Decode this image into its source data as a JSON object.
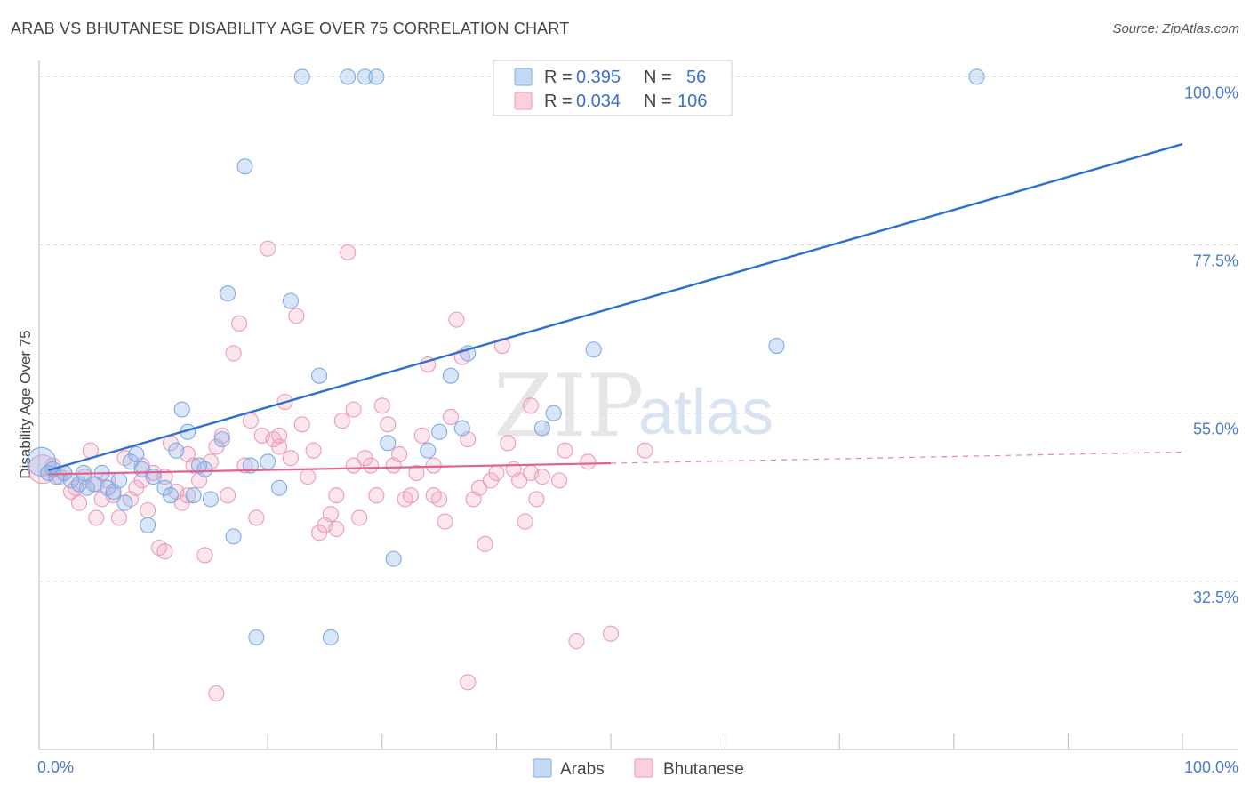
{
  "title": "ARAB VS BHUTANESE DISABILITY AGE OVER 75 CORRELATION CHART",
  "source": "Source: ZipAtlas.com",
  "watermark": {
    "zip": "ZIP",
    "atlas": "atlas"
  },
  "colors": {
    "arabs": "#8fb8ec",
    "arabs_line": "#2e6fd0",
    "bhutanese": "#f2a7c1",
    "bhutanese_line": "#e0638f",
    "grid": "#d9d9d9"
  },
  "legend": {
    "rows": [
      {
        "r_label": "R =",
        "r_value": "0.395",
        "n_label": "N =",
        "n_value": "56"
      },
      {
        "r_label": "R =",
        "r_value": "0.034",
        "n_label": "N =",
        "n_value": "106"
      }
    ]
  },
  "bottom_legend": [
    "Arabs",
    "Bhutanese"
  ],
  "chart_data": {
    "type": "scatter",
    "title": "ARAB VS BHUTANESE DISABILITY AGE OVER 75 CORRELATION CHART",
    "xlabel": "",
    "ylabel": "Disability Age Over 75",
    "xlim": [
      0,
      100
    ],
    "ylim": [
      10,
      101
    ],
    "x_tick_labels": [
      "0.0%",
      "100.0%"
    ],
    "y_ticks": [
      32.5,
      55.0,
      77.5,
      100.0
    ],
    "y_tick_labels": [
      "32.5%",
      "55.0%",
      "77.5%",
      "100.0%"
    ],
    "series": [
      {
        "name": "Arabs",
        "trend": {
          "x": [
            0,
            100
          ],
          "y": [
            47.0,
            91.0
          ],
          "solid_to": 100
        },
        "points": [
          [
            0.2,
            48.5
          ],
          [
            0.8,
            47.0
          ],
          [
            1.2,
            47.5
          ],
          [
            1.5,
            46.5
          ],
          [
            2.2,
            47.0
          ],
          [
            2.8,
            46.0
          ],
          [
            3.5,
            45.5
          ],
          [
            3.9,
            47.0
          ],
          [
            4.2,
            45.0
          ],
          [
            4.8,
            45.5
          ],
          [
            5.5,
            47.0
          ],
          [
            6.0,
            45.0
          ],
          [
            6.5,
            44.5
          ],
          [
            7.0,
            46.0
          ],
          [
            7.5,
            43.0
          ],
          [
            8.0,
            48.5
          ],
          [
            8.5,
            49.5
          ],
          [
            9.0,
            47.5
          ],
          [
            9.5,
            40.0
          ],
          [
            10.0,
            46.5
          ],
          [
            11.0,
            45.0
          ],
          [
            11.5,
            44.0
          ],
          [
            12.0,
            50.0
          ],
          [
            12.5,
            55.5
          ],
          [
            13.0,
            52.5
          ],
          [
            13.5,
            44.0
          ],
          [
            14.0,
            48.0
          ],
          [
            14.5,
            47.5
          ],
          [
            15.0,
            43.5
          ],
          [
            16.0,
            51.5
          ],
          [
            16.5,
            71.0
          ],
          [
            17.0,
            38.5
          ],
          [
            18.0,
            88.0
          ],
          [
            18.5,
            48.0
          ],
          [
            19.0,
            25.0
          ],
          [
            20.0,
            48.5
          ],
          [
            21.0,
            45.0
          ],
          [
            22.0,
            70.0
          ],
          [
            23.0,
            100.0
          ],
          [
            24.5,
            60.0
          ],
          [
            25.5,
            25.0
          ],
          [
            27.0,
            100.0
          ],
          [
            28.5,
            100.0
          ],
          [
            29.5,
            100.0
          ],
          [
            31.0,
            35.5
          ],
          [
            30.5,
            51.0
          ],
          [
            34.0,
            50.0
          ],
          [
            35.0,
            52.5
          ],
          [
            36.0,
            60.0
          ],
          [
            37.5,
            63.0
          ],
          [
            37.0,
            53.0
          ],
          [
            44.0,
            53.0
          ],
          [
            45.0,
            55.0
          ],
          [
            48.5,
            63.5
          ],
          [
            64.5,
            64.0
          ],
          [
            82.0,
            100.0
          ]
        ]
      },
      {
        "name": "Bhutanese",
        "trend": {
          "x": [
            0,
            100
          ],
          "y": [
            46.8,
            49.8
          ],
          "solid_to": 50
        },
        "points": [
          [
            0.3,
            47.5
          ],
          [
            0.8,
            47.0
          ],
          [
            1.2,
            48.0
          ],
          [
            1.8,
            46.5
          ],
          [
            2.2,
            47.0
          ],
          [
            2.8,
            44.5
          ],
          [
            3.2,
            45.0
          ],
          [
            3.5,
            43.0
          ],
          [
            4.0,
            46.5
          ],
          [
            4.5,
            50.0
          ],
          [
            5.0,
            45.5
          ],
          [
            5.5,
            43.5
          ],
          [
            6.0,
            46.0
          ],
          [
            6.5,
            44.0
          ],
          [
            7.0,
            41.0
          ],
          [
            7.5,
            49.0
          ],
          [
            8.0,
            43.5
          ],
          [
            8.5,
            45.0
          ],
          [
            9.0,
            48.0
          ],
          [
            9.5,
            42.0
          ],
          [
            10.0,
            47.0
          ],
          [
            10.5,
            37.0
          ],
          [
            11.0,
            46.5
          ],
          [
            11.5,
            51.0
          ],
          [
            12.0,
            44.5
          ],
          [
            12.5,
            43.0
          ],
          [
            13.0,
            49.5
          ],
          [
            13.5,
            48.0
          ],
          [
            14.0,
            46.0
          ],
          [
            14.5,
            36.0
          ],
          [
            15.0,
            48.5
          ],
          [
            15.5,
            50.5
          ],
          [
            16.0,
            52.0
          ],
          [
            16.5,
            44.0
          ],
          [
            17.0,
            63.0
          ],
          [
            17.5,
            67.0
          ],
          [
            18.0,
            48.0
          ],
          [
            18.5,
            54.0
          ],
          [
            19.0,
            41.0
          ],
          [
            19.5,
            52.0
          ],
          [
            20.0,
            77.0
          ],
          [
            20.5,
            51.5
          ],
          [
            21.0,
            50.5
          ],
          [
            21.5,
            56.5
          ],
          [
            22.0,
            49.0
          ],
          [
            22.5,
            68.0
          ],
          [
            23.0,
            53.5
          ],
          [
            23.5,
            46.5
          ],
          [
            24.0,
            50.0
          ],
          [
            24.5,
            39.0
          ],
          [
            25.0,
            40.0
          ],
          [
            25.5,
            41.5
          ],
          [
            26.0,
            44.0
          ],
          [
            26.5,
            54.0
          ],
          [
            27.0,
            76.5
          ],
          [
            27.5,
            55.5
          ],
          [
            28.0,
            41.0
          ],
          [
            28.5,
            49.0
          ],
          [
            29.0,
            48.0
          ],
          [
            29.5,
            44.0
          ],
          [
            30.0,
            56.0
          ],
          [
            30.5,
            53.5
          ],
          [
            31.0,
            48.0
          ],
          [
            31.5,
            49.5
          ],
          [
            32.0,
            43.5
          ],
          [
            33.0,
            47.0
          ],
          [
            33.5,
            52.0
          ],
          [
            34.0,
            61.5
          ],
          [
            34.5,
            44.0
          ],
          [
            35.0,
            43.5
          ],
          [
            35.5,
            40.5
          ],
          [
            36.0,
            54.5
          ],
          [
            36.5,
            67.5
          ],
          [
            37.0,
            62.5
          ],
          [
            37.5,
            51.5
          ],
          [
            38.0,
            43.5
          ],
          [
            38.5,
            45.0
          ],
          [
            39.0,
            37.5
          ],
          [
            40.0,
            47.0
          ],
          [
            40.5,
            64.0
          ],
          [
            41.0,
            51.0
          ],
          [
            41.5,
            47.5
          ],
          [
            42.0,
            46.0
          ],
          [
            42.5,
            40.5
          ],
          [
            43.0,
            56.0
          ],
          [
            43.5,
            43.5
          ],
          [
            44.0,
            46.5
          ],
          [
            45.5,
            46.0
          ],
          [
            46.0,
            50.0
          ],
          [
            47.0,
            24.5
          ],
          [
            50.0,
            25.5
          ],
          [
            53.0,
            50.0
          ],
          [
            37.5,
            19.0
          ],
          [
            15.5,
            17.5
          ],
          [
            32.5,
            44.0
          ],
          [
            26.0,
            39.5
          ],
          [
            11.0,
            36.5
          ],
          [
            5.0,
            41.0
          ],
          [
            9.0,
            46.0
          ],
          [
            13.0,
            44.0
          ],
          [
            21.0,
            52.0
          ],
          [
            27.5,
            48.0
          ],
          [
            34.5,
            48.0
          ],
          [
            39.5,
            46.0
          ],
          [
            43.0,
            47.0
          ],
          [
            48.0,
            48.5
          ]
        ]
      }
    ]
  }
}
